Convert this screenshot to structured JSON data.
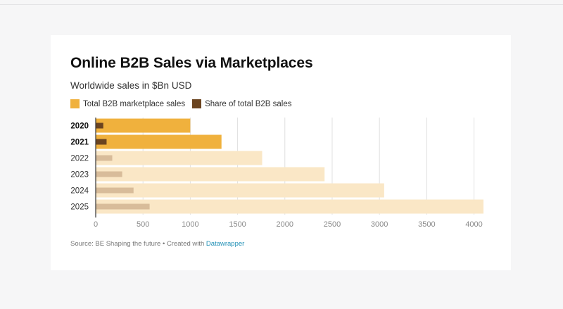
{
  "title": "Online B2B Sales via Marketplaces",
  "subtitle": "Worldwide sales in $Bn USD",
  "source": {
    "text": "Source: BE Shaping the future • Created with ",
    "link": "Datawrapper"
  },
  "colors": {
    "total": "#f0b13d",
    "total_faded": "#fae7c6",
    "share": "#6b4420",
    "share_faded": "#d8bc9a",
    "grid": "#e0e0e0",
    "axis": "#333333"
  },
  "chart_data": {
    "type": "bar",
    "orientation": "horizontal",
    "title": "Online B2B Sales via Marketplaces",
    "subtitle": "Worldwide sales in $Bn USD",
    "categories": [
      "2020",
      "2021",
      "2022",
      "2023",
      "2024",
      "2025"
    ],
    "highlighted": [
      "2020",
      "2021"
    ],
    "series": [
      {
        "name": "Total B2B marketplace sales",
        "values": [
          1000,
          1330,
          1760,
          2420,
          3050,
          4100
        ]
      },
      {
        "name": "Share of total B2B sales",
        "values": [
          80,
          115,
          175,
          280,
          400,
          570
        ]
      }
    ],
    "xlim": [
      0,
      4100
    ],
    "xticks": [
      0,
      500,
      1000,
      1500,
      2000,
      2500,
      3000,
      3500,
      4000
    ],
    "grid": true,
    "legend": "top-left"
  }
}
